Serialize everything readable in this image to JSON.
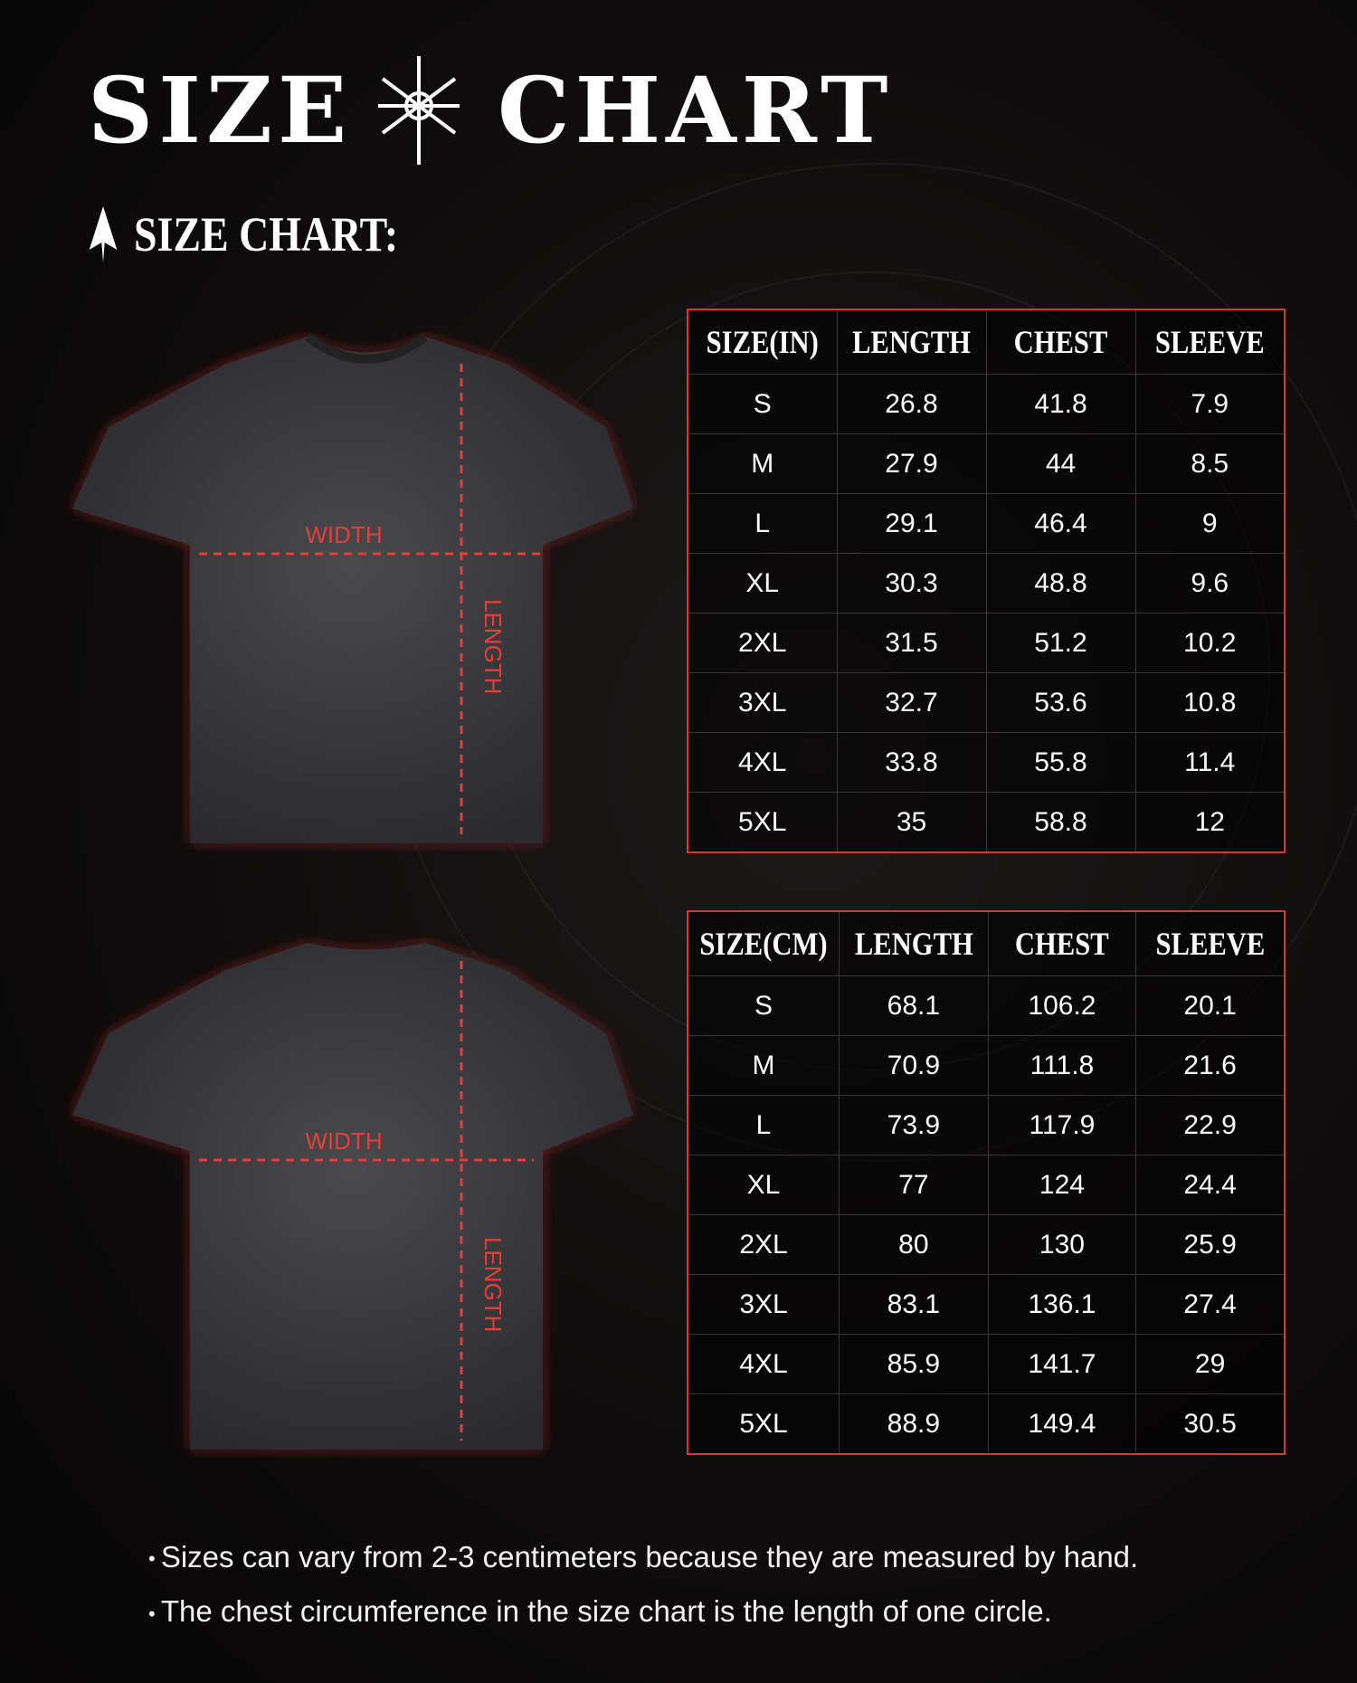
{
  "title": "SIZE CHART",
  "subtitle": "SIZE CHART:",
  "accent_color": "#d23a32",
  "shirt_labels": {
    "width": "WIDTH",
    "length": "LENGTH"
  },
  "table_in": {
    "headers": [
      "SIZE(IN)",
      "LENGTH",
      "CHEST",
      "SLEEVE"
    ],
    "rows": [
      [
        "S",
        "26.8",
        "41.8",
        "7.9"
      ],
      [
        "M",
        "27.9",
        "44",
        "8.5"
      ],
      [
        "L",
        "29.1",
        "46.4",
        "9"
      ],
      [
        "XL",
        "30.3",
        "48.8",
        "9.6"
      ],
      [
        "2XL",
        "31.5",
        "51.2",
        "10.2"
      ],
      [
        "3XL",
        "32.7",
        "53.6",
        "10.8"
      ],
      [
        "4XL",
        "33.8",
        "55.8",
        "11.4"
      ],
      [
        "5XL",
        "35",
        "58.8",
        "12"
      ]
    ]
  },
  "table_cm": {
    "headers": [
      "SIZE(CM)",
      "LENGTH",
      "CHEST",
      "SLEEVE"
    ],
    "rows": [
      [
        "S",
        "68.1",
        "106.2",
        "20.1"
      ],
      [
        "M",
        "70.9",
        "111.8",
        "21.6"
      ],
      [
        "L",
        "73.9",
        "117.9",
        "22.9"
      ],
      [
        "XL",
        "77",
        "124",
        "24.4"
      ],
      [
        "2XL",
        "80",
        "130",
        "25.9"
      ],
      [
        "3XL",
        "83.1",
        "136.1",
        "27.4"
      ],
      [
        "4XL",
        "85.9",
        "141.7",
        "29"
      ],
      [
        "5XL",
        "88.9",
        "149.4",
        "30.5"
      ]
    ]
  },
  "notes": [
    "Sizes can vary from 2-3 centimeters because they are measured by hand.",
    "The chest circumference in the size chart is the length of one circle."
  ]
}
